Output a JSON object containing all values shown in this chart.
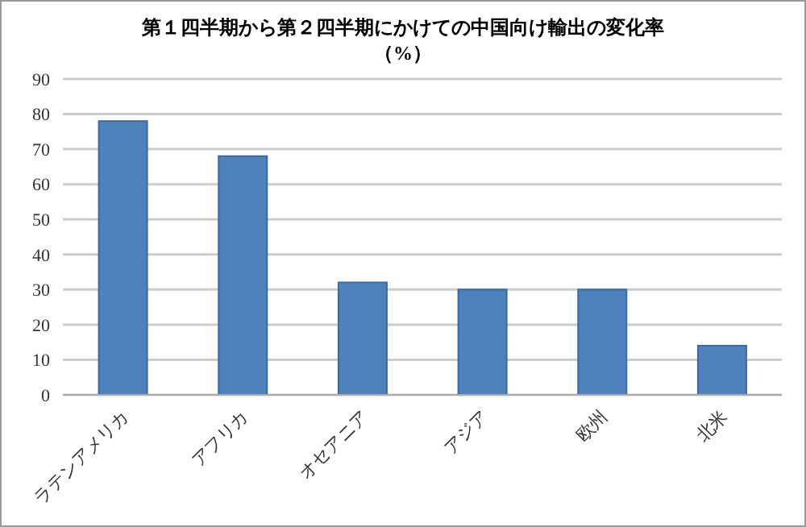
{
  "chart_data": {
    "type": "bar",
    "title": "第１四半期から第２四半期にかけての中国向け輸出の変化率",
    "subtitle": "（%）",
    "categories": [
      "ラテンアメリカ",
      "アフリカ",
      "オセアニア",
      "アジア",
      "欧州",
      "北米"
    ],
    "values": [
      78,
      68,
      32,
      30,
      30,
      14
    ],
    "color": "#4f81bd",
    "ylim": [
      0,
      90
    ],
    "yticks": [
      0,
      10,
      20,
      30,
      40,
      50,
      60,
      70,
      80,
      90
    ],
    "grid": "y"
  }
}
